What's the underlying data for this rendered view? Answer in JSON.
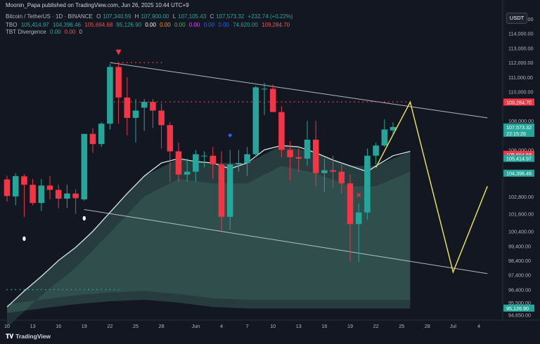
{
  "publisher": "Moonin_Papa published on TradingView.com, Jun 26, 2025 10:44 UTC+9",
  "symbol": {
    "name": "Bitcoin / TetherUS · 1D · BINANCE",
    "o_label": "O",
    "o": "107,340.59",
    "h_label": "H",
    "h": "107,900.00",
    "l_label": "L",
    "l": "107,105.43",
    "c_label": "C",
    "c": "107,573.32",
    "change": "+232.74 (+0.22%)"
  },
  "tbo": {
    "label": "TBO",
    "values": [
      "105,414.97",
      "104,396.46",
      "105,694.68",
      "95,126.90",
      "0.00",
      "0.00",
      "0.00",
      "0.00",
      "0.00",
      "0.00",
      "74,620.00",
      "109,284.70"
    ]
  },
  "tbt": {
    "label": "TBT Divergence",
    "values": [
      "0.00",
      "0.00",
      "0"
    ]
  },
  "currency": "USDT",
  "footer": {
    "brand": "TradingView",
    "icon": "tradingview-logo-icon"
  },
  "colors": {
    "up": "#26a69a",
    "down": "#f23645",
    "bg": "#131722",
    "ema": "#cfe9e3",
    "projection": "#f5e94a",
    "channel": "#d1d4dc",
    "tag_red": "#f23645",
    "tag_green": "#26a69a",
    "tag_teal": "#2b7a6f"
  },
  "chart_data": {
    "type": "candlestick",
    "y_scale": "linear",
    "ylim": [
      94300,
      116300
    ],
    "y_ticks": [
      {
        "v": 115000,
        "label": "115,000.00"
      },
      {
        "v": 114000,
        "label": "114,000.00"
      },
      {
        "v": 113000,
        "label": "113,000.00"
      },
      {
        "v": 112000,
        "label": "112,000.00"
      },
      {
        "v": 111000,
        "label": "111,000.00"
      },
      {
        "v": 110000,
        "label": "110,000.00"
      },
      {
        "v": 108000,
        "label": "108,000.00"
      },
      {
        "v": 106000,
        "label": "106,000.00"
      },
      {
        "v": 102800,
        "label": "102,800.00"
      },
      {
        "v": 101600,
        "label": "101,600.00"
      },
      {
        "v": 100400,
        "label": "100,400.00"
      },
      {
        "v": 99400,
        "label": "99,400.00"
      },
      {
        "v": 98400,
        "label": "98,400.00"
      },
      {
        "v": 97400,
        "label": "97,400.00"
      },
      {
        "v": 96400,
        "label": "96,400.00"
      },
      {
        "v": 95500,
        "label": "95,500.00"
      },
      {
        "v": 94650,
        "label": "94,650.00"
      }
    ],
    "x_ticks": [
      {
        "i": 0,
        "label": "10"
      },
      {
        "i": 3,
        "label": "13"
      },
      {
        "i": 6,
        "label": "16"
      },
      {
        "i": 9,
        "label": "19"
      },
      {
        "i": 12,
        "label": "22"
      },
      {
        "i": 15,
        "label": "25"
      },
      {
        "i": 18,
        "label": "28"
      },
      {
        "i": 22,
        "label": "Jun"
      },
      {
        "i": 25,
        "label": "4"
      },
      {
        "i": 28,
        "label": "7"
      },
      {
        "i": 31,
        "label": "10"
      },
      {
        "i": 34,
        "label": "13"
      },
      {
        "i": 37,
        "label": "16"
      },
      {
        "i": 40,
        "label": "19"
      },
      {
        "i": 43,
        "label": "22"
      },
      {
        "i": 46,
        "label": "25"
      },
      {
        "i": 49,
        "label": "28"
      },
      {
        "i": 52,
        "label": "Jul"
      },
      {
        "i": 55,
        "label": "4"
      }
    ],
    "candles": [
      [
        103970,
        104220,
        102450,
        102830
      ],
      [
        102800,
        104400,
        102200,
        104200
      ],
      [
        104180,
        104330,
        101400,
        103600
      ],
      [
        103600,
        104000,
        102200,
        102350
      ],
      [
        102350,
        104000,
        101800,
        103550
      ],
      [
        103550,
        104200,
        102600,
        103250
      ],
      [
        103250,
        103600,
        102000,
        102650
      ],
      [
        102650,
        103600,
        102000,
        103000
      ],
      [
        103000,
        103300,
        101600,
        102680
      ],
      [
        102600,
        107000,
        102500,
        107100
      ],
      [
        107100,
        107500,
        105800,
        106400
      ],
      [
        106400,
        107900,
        106200,
        107800
      ],
      [
        107800,
        111900,
        107400,
        111700
      ],
      [
        111700,
        112000,
        107800,
        109600
      ],
      [
        109600,
        111000,
        107000,
        108200
      ],
      [
        108200,
        109500,
        106500,
        108700
      ],
      [
        108900,
        109500,
        107300,
        109300
      ],
      [
        109300,
        109500,
        107500,
        108700
      ],
      [
        108700,
        109200,
        106100,
        107700
      ],
      [
        107700,
        107900,
        103800,
        105900
      ],
      [
        105900,
        106500,
        103800,
        104300
      ],
      [
        104300,
        105400,
        103800,
        104500
      ],
      [
        104500,
        106000,
        103800,
        105700
      ],
      [
        105600,
        105900,
        104800,
        105600
      ],
      [
        105600,
        106200,
        104000,
        105000
      ],
      [
        105000,
        105900,
        100400,
        101400
      ],
      [
        101400,
        106000,
        100500,
        105000
      ],
      [
        105000,
        106000,
        104500,
        105100
      ],
      [
        105100,
        106200,
        104200,
        105700
      ],
      [
        105700,
        110400,
        105500,
        110300
      ],
      [
        110200,
        110600,
        108400,
        110200
      ],
      [
        110200,
        110500,
        108800,
        108600
      ],
      [
        108600,
        109000,
        105500,
        106000
      ],
      [
        106000,
        106600,
        103900,
        105500
      ],
      [
        105500,
        106200,
        104500,
        105400
      ],
      [
        105400,
        108000,
        104900,
        106700
      ],
      [
        106700,
        108000,
        103500,
        104400
      ],
      [
        104400,
        105400,
        103100,
        104600
      ],
      [
        104600,
        105600,
        103400,
        104500
      ],
      [
        104500,
        105000,
        103000,
        103700
      ],
      [
        103700,
        104300,
        98300,
        100900
      ],
      [
        100900,
        102300,
        98300,
        101700
      ],
      [
        101700,
        106100,
        101200,
        105600
      ],
      [
        105600,
        106500,
        105000,
        106300
      ],
      [
        106300,
        108100,
        106200,
        107400
      ],
      [
        107340,
        107900,
        107105,
        107573
      ]
    ],
    "ema": [
      [
        0,
        95200
      ],
      [
        2,
        96300
      ],
      [
        4,
        97300
      ],
      [
        6,
        98400
      ],
      [
        8,
        99300
      ],
      [
        10,
        100400
      ],
      [
        12,
        101700
      ],
      [
        14,
        103000
      ],
      [
        16,
        104200
      ],
      [
        18,
        105100
      ],
      [
        20,
        105400
      ],
      [
        22,
        105200
      ],
      [
        24,
        105100
      ],
      [
        26,
        104700
      ],
      [
        28,
        105100
      ],
      [
        30,
        106000
      ],
      [
        32,
        106300
      ],
      [
        34,
        106200
      ],
      [
        36,
        105800
      ],
      [
        38,
        105300
      ],
      [
        40,
        104900
      ],
      [
        42,
        104500
      ],
      [
        43,
        104900
      ],
      [
        45,
        105600
      ],
      [
        47,
        105900
      ]
    ],
    "cloud_top": [
      [
        0,
        95200
      ],
      [
        4,
        97400
      ],
      [
        8,
        99300
      ],
      [
        12,
        101700
      ],
      [
        16,
        104200
      ],
      [
        20,
        105400
      ],
      [
        24,
        105100
      ],
      [
        28,
        105100
      ],
      [
        32,
        106300
      ],
      [
        36,
        105800
      ],
      [
        40,
        104900
      ],
      [
        43,
        104900
      ],
      [
        47,
        105900
      ]
    ],
    "cloud_bottom": [
      [
        0,
        94800
      ],
      [
        4,
        95100
      ],
      [
        8,
        95400
      ],
      [
        12,
        95600
      ],
      [
        16,
        95700
      ],
      [
        20,
        95500
      ],
      [
        24,
        95200
      ],
      [
        28,
        95100
      ],
      [
        32,
        95100
      ],
      [
        36,
        95100
      ],
      [
        40,
        95100
      ],
      [
        43,
        95100
      ],
      [
        47,
        95100
      ]
    ],
    "channel_upper": [
      [
        12,
        112000
      ],
      [
        56,
        108200
      ]
    ],
    "channel_lower": [
      [
        9,
        101900
      ],
      [
        56,
        97500
      ]
    ],
    "projection": [
      [
        43,
        104800
      ],
      [
        47,
        109284.7
      ],
      [
        52,
        97600
      ],
      [
        56,
        103500
      ]
    ],
    "resistance_dots": {
      "y": 109300,
      "from": 12,
      "to": 47
    },
    "top_dots": {
      "y": 112000,
      "from": 13,
      "to": 18
    },
    "support_dots": {
      "y": 96400,
      "from": 0,
      "to": 13
    },
    "markers": [
      {
        "type": "down-triangle",
        "i": 13,
        "y": 112700,
        "color": "#f23645"
      },
      {
        "type": "diamond",
        "i": 26,
        "y": 107000,
        "color": "#2962ff"
      },
      {
        "type": "x",
        "i": 41,
        "y": 102900,
        "color": "#f23645"
      },
      {
        "type": "drop",
        "i": 2,
        "y": 99900,
        "color": "#ffffff"
      },
      {
        "type": "drop",
        "i": 9,
        "y": 101300,
        "color": "#ffffff"
      }
    ],
    "price_tags": [
      {
        "v": 109284.7,
        "label": "109,284.70",
        "color": "#f23645"
      },
      {
        "v": 107573.32,
        "label": "107,573.32",
        "sub": "22:15:26",
        "color": "#26a69a"
      },
      {
        "v": 105694.68,
        "label": "105,694.68",
        "color": "#f23645"
      },
      {
        "v": 105414.97,
        "label": "105,414.97",
        "color": "#26a69a"
      },
      {
        "v": 104396.46,
        "label": "104,396.46",
        "color": "#26a69a"
      },
      {
        "v": 95126.9,
        "label": "95,126.90",
        "color": "#26a69a"
      }
    ]
  }
}
